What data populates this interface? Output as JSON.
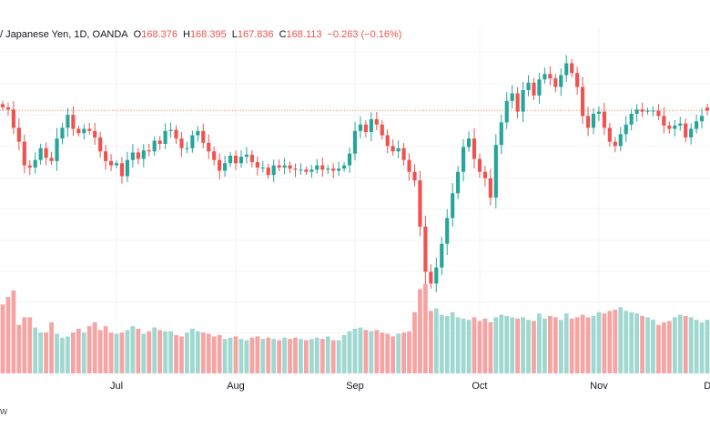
{
  "legend": {
    "symbol": "/ Japanese Yen, 1D, OANDA",
    "open_label": "O",
    "open": "168.376",
    "high_label": "H",
    "high": "168.395",
    "low_label": "L",
    "low": "167.836",
    "close_label": "C",
    "close": "168.113",
    "change": "−0.263 (−0.16%)"
  },
  "footer_text": "w",
  "colors": {
    "up": "#26a69a",
    "down": "#ef5350",
    "vol_up": "#9fd8d0",
    "vol_down": "#f5a3a3",
    "grid": "#f0f3fa",
    "ref_line": "#f07f4a"
  },
  "chart_data": {
    "type": "candlestick",
    "x_ticks": [
      "Jul",
      "Aug",
      "Sep",
      "Oct",
      "Nov",
      "Dec"
    ],
    "reference_price": 168.11,
    "price_range": [
      150,
      175
    ],
    "last_candle": {
      "open": 168.376,
      "high": 168.395,
      "low": 167.836,
      "close": 168.113
    },
    "closes": [
      168.4,
      168.2,
      166.5,
      165.2,
      163.0,
      162.8,
      163.5,
      164.6,
      163.7,
      163.4,
      165.5,
      166.5,
      167.7,
      166.4,
      166.0,
      166.4,
      166.2,
      165.6,
      164.3,
      163.4,
      163.0,
      163.2,
      162.0,
      163.5,
      164.2,
      163.6,
      164.4,
      164.3,
      165.3,
      165.0,
      166.2,
      166.3,
      165.5,
      164.6,
      164.6,
      165.8,
      166.2,
      165.1,
      164.3,
      163.5,
      162.5,
      163.2,
      163.9,
      163.2,
      163.8,
      164.0,
      163.3,
      162.8,
      162.8,
      162.1,
      163.0,
      162.8,
      163.0,
      162.7,
      162.6,
      162.6,
      162.4,
      162.6,
      163.0,
      162.6,
      162.7,
      162.5,
      162.7,
      163.0,
      164.1,
      166.2,
      166.8,
      166.1,
      167.3,
      166.8,
      165.8,
      164.8,
      164.3,
      164.6,
      163.5,
      162.4,
      161.6,
      157.3,
      153.1,
      152.0,
      153.5,
      155.7,
      158.1,
      160.4,
      162.4,
      164.7,
      165.5,
      163.6,
      162.4,
      161.8,
      160.0,
      164.9,
      167.0,
      169.0,
      169.7,
      168.0,
      170.0,
      170.7,
      169.5,
      171.0,
      171.5,
      171.1,
      170.3,
      171.4,
      172.5,
      171.6,
      170.3,
      167.6,
      166.5,
      167.8,
      168.0,
      166.5,
      165.2,
      164.8,
      165.9,
      166.8,
      167.8,
      168.2,
      168.0,
      168.1,
      168.1,
      167.6,
      166.7,
      166.4,
      166.7,
      166.9,
      165.6,
      166.4,
      167.1,
      167.6,
      168.1
    ],
    "volumes": [
      0.54,
      0.6,
      0.65,
      0.38,
      0.44,
      0.44,
      0.36,
      0.32,
      0.32,
      0.4,
      0.31,
      0.28,
      0.29,
      0.32,
      0.35,
      0.32,
      0.37,
      0.4,
      0.34,
      0.37,
      0.32,
      0.31,
      0.32,
      0.34,
      0.37,
      0.35,
      0.31,
      0.33,
      0.36,
      0.34,
      0.33,
      0.33,
      0.3,
      0.29,
      0.32,
      0.35,
      0.33,
      0.32,
      0.31,
      0.29,
      0.3,
      0.27,
      0.28,
      0.29,
      0.27,
      0.26,
      0.28,
      0.29,
      0.27,
      0.28,
      0.27,
      0.26,
      0.28,
      0.27,
      0.28,
      0.27,
      0.26,
      0.27,
      0.28,
      0.27,
      0.29,
      0.26,
      0.26,
      0.3,
      0.33,
      0.35,
      0.36,
      0.34,
      0.33,
      0.34,
      0.32,
      0.31,
      0.29,
      0.31,
      0.32,
      0.33,
      0.48,
      0.66,
      0.7,
      0.49,
      0.51,
      0.46,
      0.45,
      0.48,
      0.44,
      0.43,
      0.42,
      0.44,
      0.41,
      0.43,
      0.4,
      0.44,
      0.46,
      0.45,
      0.44,
      0.43,
      0.44,
      0.42,
      0.41,
      0.47,
      0.43,
      0.45,
      0.44,
      0.42,
      0.47,
      0.43,
      0.44,
      0.46,
      0.44,
      0.45,
      0.48,
      0.47,
      0.49,
      0.5,
      0.52,
      0.49,
      0.48,
      0.47,
      0.45,
      0.44,
      0.42,
      0.38,
      0.4,
      0.41,
      0.44,
      0.46,
      0.45,
      0.44,
      0.42,
      0.4,
      0.42
    ]
  }
}
